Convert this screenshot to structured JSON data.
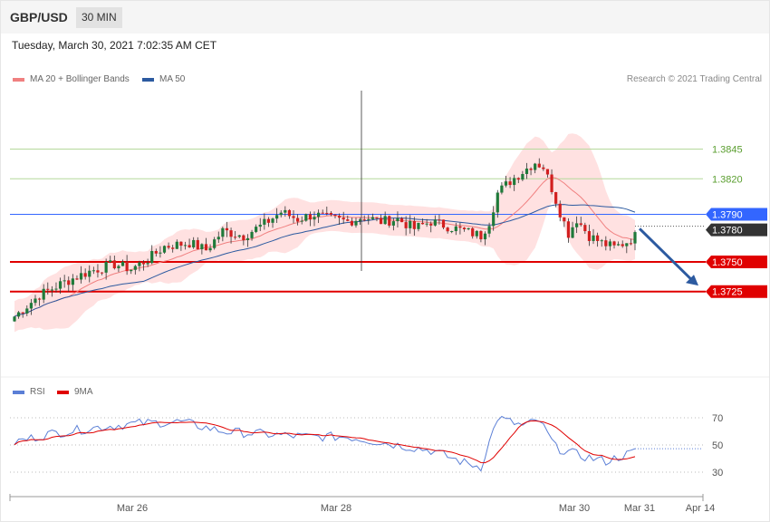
{
  "header": {
    "pair": "GBP/USD",
    "timeframe": "30 MIN"
  },
  "timestamp": "Tuesday, March 30, 2021 7:02:35 AM CET",
  "copyright": "Research © 2021 Trading Central",
  "legend": [
    {
      "label": "MA 20 + Bollinger Bands",
      "color": "#f08080"
    },
    {
      "label": "MA 50",
      "color": "#2c5aa0"
    }
  ],
  "rsi_legend": [
    {
      "label": "RSI",
      "color": "#5b7fd6"
    },
    {
      "label": "9MA",
      "color": "#e00000"
    }
  ],
  "colors": {
    "up": "#1f7a3a",
    "down": "#d21f1f",
    "res_line": "#b5d99c",
    "pivot": "#3366ff",
    "support": "#e00000",
    "band": "#ffd9d9",
    "ma20": "#f08080",
    "ma50": "#2c5aa0",
    "rsi": "#5b7fd6",
    "rsi_ma": "#e00000",
    "current": "#333333",
    "arrow": "#2c5aa0"
  },
  "chart_data": [
    {
      "type": "candlestick",
      "name": "price",
      "ylim": [
        1.3666,
        1.3895
      ],
      "x_ticks": [
        "Mar 26",
        "Mar 28",
        "Mar 30",
        "Mar 31",
        "Apr 14"
      ],
      "levels": [
        {
          "value": 1.3845,
          "label": "1.3845",
          "kind": "resistance"
        },
        {
          "value": 1.382,
          "label": "1.3820",
          "kind": "resistance"
        },
        {
          "value": 1.379,
          "label": "1.3790",
          "kind": "pivot"
        },
        {
          "value": 1.375,
          "label": "1.3750",
          "kind": "support"
        },
        {
          "value": 1.3725,
          "label": "1.3725",
          "kind": "support"
        }
      ],
      "current": {
        "value": 1.378,
        "label": "1.3780"
      },
      "forecast_arrow": {
        "from": 1.3778,
        "to": 1.373,
        "direction": "down"
      }
    },
    {
      "type": "line",
      "name": "RSI",
      "ylim": [
        20,
        80
      ],
      "y_ticks": [
        "70",
        "50",
        "30"
      ],
      "series": [
        {
          "name": "RSI"
        },
        {
          "name": "9MA"
        }
      ]
    }
  ]
}
